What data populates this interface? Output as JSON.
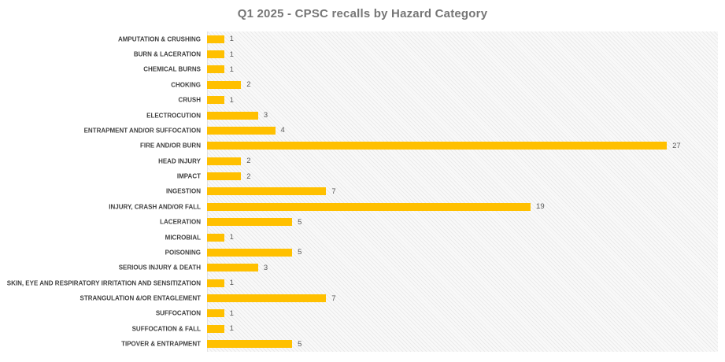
{
  "chart_data": {
    "type": "bar",
    "orientation": "horizontal",
    "title": "Q1 2025 - CPSC recalls by Hazard Category",
    "categories": [
      "AMPUTATION & CRUSHING",
      "BURN & LACERATION",
      "CHEMICAL BURNS",
      "CHOKING",
      "CRUSH",
      "ELECTROCUTION",
      "ENTRAPMENT AND/OR SUFFOCATION",
      "FIRE AND/OR BURN",
      "HEAD INJURY",
      "IMPACT",
      "INGESTION",
      "INJURY, CRASH AND/OR FALL",
      "LACERATION",
      "MICROBIAL",
      "POISONING",
      "SERIOUS INJURY & DEATH",
      "SKIN, EYE AND RESPIRATORY IRRITATION AND SENSITIZATION",
      "STRANGULATION &/OR ENTAGLEMENT",
      "SUFFOCATION",
      "SUFFOCATION & FALL",
      "TIPOVER & ENTRAPMENT"
    ],
    "values": [
      1,
      1,
      1,
      2,
      1,
      3,
      4,
      27,
      2,
      2,
      7,
      19,
      5,
      1,
      5,
      3,
      1,
      7,
      1,
      1,
      5
    ],
    "xlabel": "",
    "ylabel": "",
    "xlim": [
      0,
      30
    ],
    "grid": "off",
    "legend": "none",
    "data_labels": "outside-end",
    "plot_background": "diagonal-hatch",
    "colors": {
      "bar": "#FFC000",
      "title_text": "#767676",
      "category_text": "#3F3F3F",
      "value_text": "#595959",
      "hatch_line": "#EAEAEA",
      "hatch_gap": "#F9F9F9"
    }
  }
}
